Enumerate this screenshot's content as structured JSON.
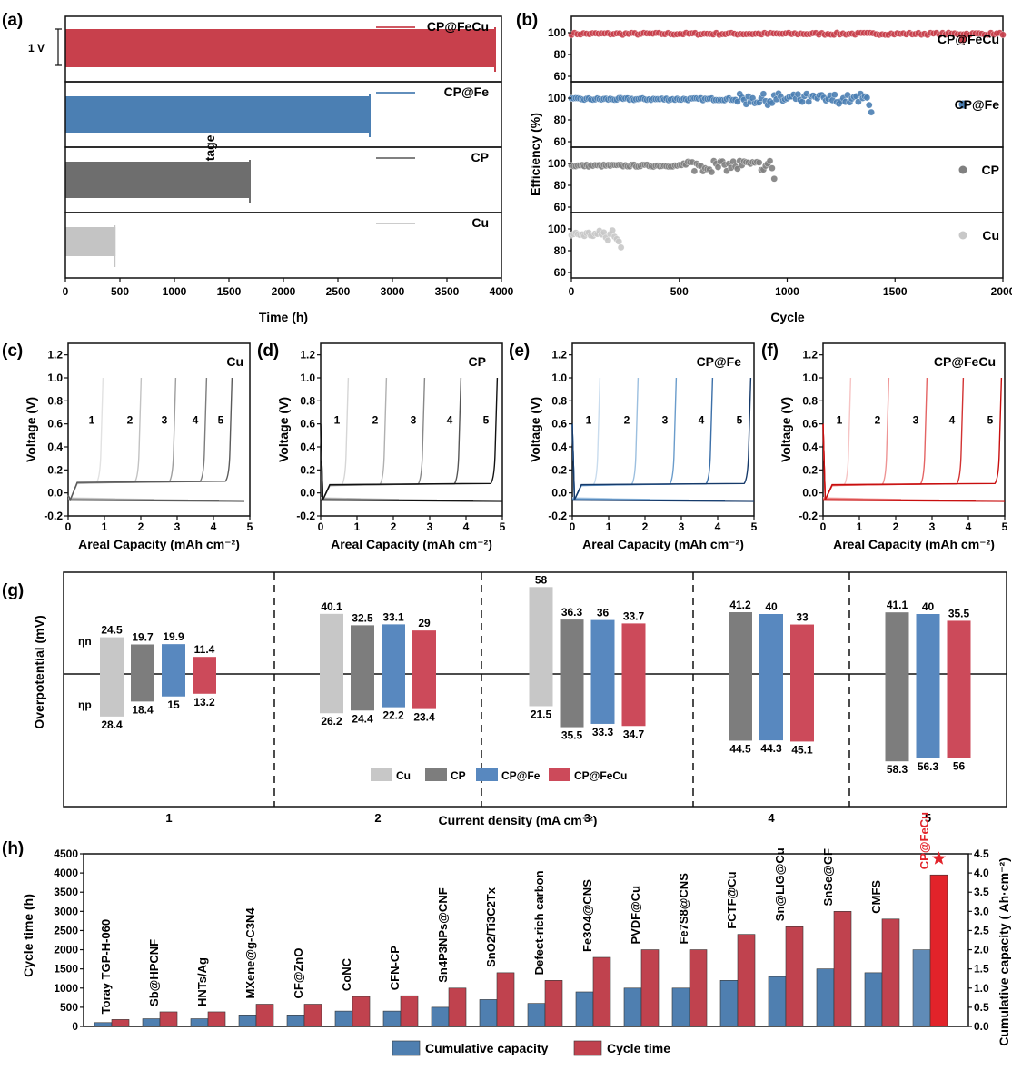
{
  "panels": {
    "a": {
      "label": "(a)",
      "xlabel": "Time (h)",
      "ylabel": "Voltage (V)",
      "scale_label": "1 V",
      "xticks": [
        "0",
        "500",
        "1000",
        "1500",
        "2000",
        "2500",
        "3000",
        "3500",
        "4000"
      ]
    },
    "b": {
      "label": "(b)",
      "xlabel": "Cycle",
      "ylabel": "Efficiency (%)",
      "xticks": [
        "0",
        "500",
        "1000",
        "1500",
        "2000"
      ],
      "yticks": [
        "60",
        "80",
        "100"
      ]
    },
    "c": {
      "label": "(c)",
      "name": "Cu"
    },
    "d": {
      "label": "(d)",
      "name": "CP"
    },
    "e": {
      "label": "(e)",
      "name": "CP@Fe"
    },
    "f": {
      "label": "(f)",
      "name": "CP@FeCu"
    },
    "cdef_axes": {
      "xlabel": "Areal Capacity (mAh cm⁻²)",
      "ylabel": "Voltage (V)",
      "xticks": [
        "0",
        "1",
        "2",
        "3",
        "4",
        "5"
      ],
      "yticks": [
        "-0.2",
        "0.0",
        "0.2",
        "0.4",
        "0.6",
        "0.8",
        "1.0",
        "1.2"
      ]
    },
    "g": {
      "label": "(g)",
      "ylabel": "Overpotential (mV)",
      "xlabel": "Current density (mA cm⁻²)"
    },
    "h": {
      "label": "(h)",
      "ylabel_left": "Cycle time  (h)",
      "ylabel_right": "Cumulative capacity ( Ah·cm⁻²)",
      "yticks_left": [
        "0",
        "500",
        "1000",
        "1500",
        "2000",
        "2500",
        "3000",
        "3500",
        "4000",
        "4500"
      ],
      "yticks_right": [
        "0.0",
        "0.5",
        "1.0",
        "1.5",
        "2.0",
        "2.5",
        "3.0",
        "3.5",
        "4.0",
        "4.5"
      ]
    }
  },
  "chart_data": [
    {
      "type": "line",
      "panel": "a",
      "xlabel": "Time (h)",
      "ylabel": "Voltage (V)",
      "xlim": [
        0,
        4000
      ],
      "series": [
        {
          "name": "CP@FeCu",
          "color": "#c8404c",
          "duration_h": 3950
        },
        {
          "name": "CP@Fe",
          "color": "#4b7fb3",
          "duration_h": 2800
        },
        {
          "name": "CP",
          "color": "#6e6e6e",
          "duration_h": 1700
        },
        {
          "name": "Cu",
          "color": "#c4c4c4",
          "duration_h": 460
        }
      ]
    },
    {
      "type": "scatter",
      "panel": "b",
      "xlabel": "Cycle",
      "ylabel": "Efficiency (%)",
      "xlim": [
        0,
        2000
      ],
      "ylim": [
        55,
        115
      ],
      "series": [
        {
          "name": "CP@FeCu",
          "color": "#c8404c",
          "cycles": 2000,
          "mean_efficiency": 99
        },
        {
          "name": "CP@Fe",
          "color": "#4b7fb3",
          "cycles": 1390,
          "mean_efficiency": 99
        },
        {
          "name": "CP",
          "color": "#808080",
          "cycles": 940,
          "mean_efficiency": 98
        },
        {
          "name": "Cu",
          "color": "#c8c8c8",
          "cycles": 230,
          "mean_efficiency": 95
        }
      ]
    },
    {
      "type": "line",
      "panel": "c-f",
      "xlabel": "Areal Capacity (mAh cm⁻²)",
      "ylabel": "Voltage (V)",
      "xlim": [
        0,
        5
      ],
      "ylim": [
        -0.2,
        1.3
      ],
      "curve_labels": [
        "1",
        "2",
        "3",
        "4",
        "5"
      ],
      "samples": [
        {
          "name": "Cu",
          "onsets": [
            0.9,
            1.95,
            2.9,
            3.75,
            4.45
          ],
          "plateau_V": 0.08,
          "colors": [
            "#e2e2e2",
            "#c2c2c2",
            "#9e9e9e",
            "#7c7c7c",
            "#5a5a5a"
          ]
        },
        {
          "name": "CP",
          "onsets": [
            0.7,
            1.75,
            2.8,
            3.8,
            4.8
          ],
          "plateau_V": 0.06,
          "colors": [
            "#d6d6d6",
            "#b0b0b0",
            "#888888",
            "#555555",
            "#111111"
          ]
        },
        {
          "name": "CP@Fe",
          "onsets": [
            0.7,
            1.75,
            2.8,
            3.8,
            4.85
          ],
          "plateau_V": 0.06,
          "colors": [
            "#c9dcee",
            "#9cbfdf",
            "#6a9ccb",
            "#3b6fa8",
            "#163a6a"
          ]
        },
        {
          "name": "CP@FeCu",
          "onsets": [
            0.7,
            1.75,
            2.8,
            3.8,
            4.85
          ],
          "plateau_V": 0.06,
          "colors": [
            "#f6c4c4",
            "#ee9494",
            "#e46464",
            "#d23232",
            "#c80e0e"
          ]
        }
      ]
    },
    {
      "type": "bar",
      "panel": "g",
      "xlabel": "Current density (mA cm⁻²)",
      "ylabel": "Overpotential (mV)",
      "side_labels": [
        "ηn",
        "ηp"
      ],
      "categories": [
        "1",
        "2",
        "3",
        "4",
        "5"
      ],
      "series": [
        {
          "name": "Cu",
          "color": "#c7c7c7",
          "eta_n": [
            24.5,
            40.1,
            58,
            null,
            null
          ],
          "eta_p": [
            28.4,
            26.2,
            21.5,
            null,
            null
          ]
        },
        {
          "name": "CP",
          "color": "#7d7d7d",
          "eta_n": [
            19.7,
            32.5,
            36.3,
            41.2,
            41.1
          ],
          "eta_p": [
            18.4,
            24.4,
            35.5,
            44.5,
            58.3
          ]
        },
        {
          "name": "CP@Fe",
          "color": "#5888bf",
          "eta_n": [
            19.9,
            33.1,
            36,
            40,
            40
          ],
          "eta_p": [
            15,
            22.2,
            33.3,
            44.3,
            56.3
          ]
        },
        {
          "name": "CP@FeCu",
          "color": "#cc4a5a",
          "eta_n": [
            11.4,
            29,
            33.7,
            33,
            35.5
          ],
          "eta_p": [
            13.2,
            23.4,
            34.7,
            45.1,
            56
          ]
        }
      ]
    },
    {
      "type": "bar",
      "panel": "h",
      "ylabel": "Cycle time  (h)",
      "ylabel_right": "Cumulative capacity ( Ah·cm⁻²)",
      "ylim": [
        0,
        4500
      ],
      "ylim_right": [
        0,
        4.5
      ],
      "categories": [
        "Toray TGP-H-060",
        "Sb@HPCNF",
        "HNTs/Ag",
        "MXene@g-C3N4",
        "CF@ZnO",
        "CoNC",
        "CFN-CP",
        "Sn4P3NPs@CNF",
        "SnO2/Ti3C2Tx",
        "Defect-rich carbon",
        "Fe3O4@CNS",
        "PVDF@Cu",
        "Fe7S8@CNS",
        "FCTF@Cu",
        "Sn@LIG@Cu",
        "SnSe@GF",
        "CMFS",
        "CP@FeCu"
      ],
      "series": [
        {
          "name": "Cumulative capacity",
          "color": "#4f7fb0",
          "values": [
            0.1,
            0.2,
            0.2,
            0.3,
            0.3,
            0.4,
            0.4,
            0.5,
            0.7,
            0.6,
            0.9,
            1.0,
            1.0,
            1.2,
            1.3,
            1.5,
            1.4,
            2.0
          ]
        },
        {
          "name": "Cycle time",
          "color": "#c0424e",
          "values": [
            180,
            380,
            380,
            580,
            580,
            780,
            800,
            1000,
            1400,
            1200,
            1800,
            2000,
            2000,
            2400,
            2600,
            3000,
            2800,
            3950
          ]
        }
      ]
    }
  ]
}
